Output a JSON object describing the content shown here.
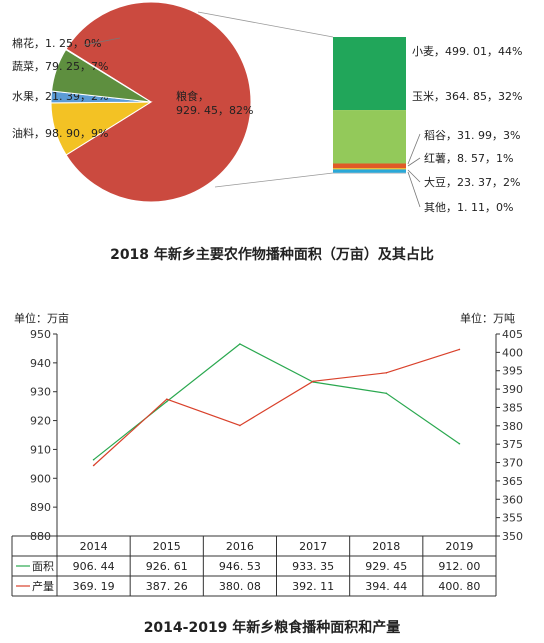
{
  "chart_data": [
    {
      "type": "pie",
      "title": "2018 年新乡主要农作物播种面积（万亩）及其占比",
      "slices": [
        {
          "name": "粮食",
          "value": 929.45,
          "pct": "82%",
          "label": "粮食，\n929. 45，82%",
          "color": "#cb4a3f"
        },
        {
          "name": "油料",
          "value": 98.9,
          "pct": "9%",
          "label": "油料，98. 90，9%",
          "color": "#f3c224"
        },
        {
          "name": "水果",
          "value": 21.39,
          "pct": "2%",
          "label": "水果，21. 39，2%",
          "color": "#5b9bd5"
        },
        {
          "name": "蔬菜",
          "value": 79.25,
          "pct": "7%",
          "label": "蔬菜，79. 25，7%",
          "color": "#5e8f3f"
        },
        {
          "name": "棉花",
          "value": 1.25,
          "pct": "0%",
          "label": "棉花，1. 25，0%",
          "color": "#ffffff"
        }
      ],
      "breakdown": {
        "of": "粮食",
        "segments": [
          {
            "name": "小麦",
            "value": 499.01,
            "pct": "44%",
            "label": "小麦，499. 01，44%",
            "color": "#21a65a"
          },
          {
            "name": "玉米",
            "value": 364.85,
            "pct": "32%",
            "label": "玉米，364. 85，32%",
            "color": "#93c95a"
          },
          {
            "name": "稻谷",
            "value": 31.99,
            "pct": "3%",
            "label": "稻谷，31. 99，3%",
            "color": "#e05a28"
          },
          {
            "name": "红薯",
            "value": 8.57,
            "pct": "1%",
            "label": "红薯，8. 57，1%",
            "color": "#f0b820"
          },
          {
            "name": "大豆",
            "value": 23.37,
            "pct": "2%",
            "label": "大豆，23. 37，2%",
            "color": "#2aa8d8"
          },
          {
            "name": "其他",
            "value": 1.11,
            "pct": "0%",
            "label": "其他，1. 11，0%",
            "color": "#9aa0a6"
          }
        ]
      }
    },
    {
      "type": "line",
      "title": "2014-2019 年新乡粮食播种面积和产量",
      "categories": [
        "2014",
        "2015",
        "2016",
        "2017",
        "2018",
        "2019"
      ],
      "yleft_unit": "单位：万亩",
      "yright_unit": "单位：万吨",
      "ylim_left": [
        880,
        950
      ],
      "ylim_right": [
        350,
        405
      ],
      "yticks_left": [
        880,
        890,
        900,
        910,
        920,
        930,
        940,
        950
      ],
      "yticks_right": [
        350,
        355,
        360,
        365,
        370,
        375,
        380,
        385,
        390,
        395,
        400,
        405
      ],
      "series": [
        {
          "name": "面积",
          "axis": "left",
          "color": "#2aa84f",
          "values": [
            906.44,
            926.61,
            946.53,
            933.35,
            929.45,
            912.0
          ],
          "labels": [
            "906. 44",
            "926. 61",
            "946. 53",
            "933. 35",
            "929. 45",
            "912. 00"
          ]
        },
        {
          "name": "产量",
          "axis": "right",
          "color": "#d9412b",
          "values": [
            369.19,
            387.26,
            380.08,
            392.11,
            394.44,
            400.8
          ],
          "labels": [
            "369. 19",
            "387. 26",
            "380. 08",
            "392. 11",
            "394. 44",
            "400. 80"
          ]
        }
      ]
    }
  ]
}
